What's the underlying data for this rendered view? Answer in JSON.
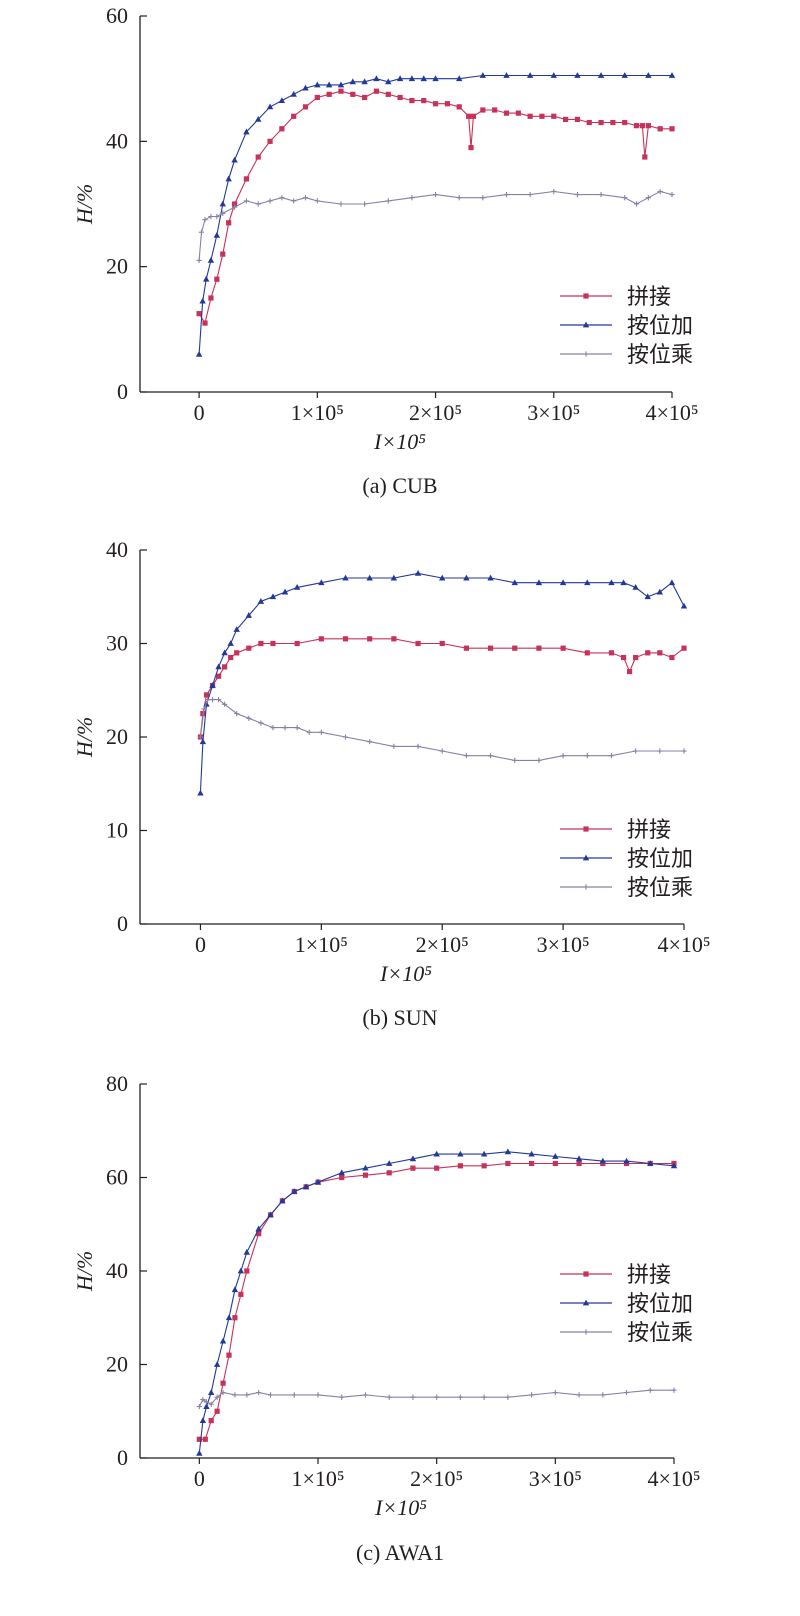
{
  "figure": {
    "background": "#ffffff",
    "axis_color": "#231f20"
  },
  "series_meta": [
    {
      "name": "拼接",
      "color": "#c8325a",
      "marker": "square"
    },
    {
      "name": "按位加",
      "color": "#23399a",
      "marker": "triangle"
    },
    {
      "name": "按位乘",
      "color": "#8a7fa6",
      "marker": "plus"
    }
  ],
  "chart_data": [
    {
      "type": "line",
      "caption": "(a) CUB",
      "xlabel": "I×10⁵",
      "ylabel": "H/%",
      "xlim": [
        -50000,
        400000
      ],
      "ylim": [
        0,
        60
      ],
      "y_ticks": [
        0,
        20,
        40,
        60
      ],
      "x_ticks": [
        0,
        100000,
        200000,
        300000,
        400000
      ],
      "x_tick_labels": [
        "0",
        "1×10⁵",
        "2×10⁵",
        "3×10⁵",
        "4×10⁵"
      ],
      "legend_position": "right",
      "series": [
        {
          "name": "拼接",
          "x": [
            0,
            5000,
            10000,
            15000,
            20000,
            25000,
            30000,
            40000,
            50000,
            60000,
            70000,
            80000,
            90000,
            100000,
            110000,
            120000,
            130000,
            140000,
            150000,
            160000,
            170000,
            180000,
            190000,
            200000,
            210000,
            220000,
            228000,
            230000,
            232000,
            240000,
            250000,
            260000,
            270000,
            280000,
            290000,
            300000,
            310000,
            320000,
            330000,
            340000,
            350000,
            360000,
            370000,
            375000,
            377000,
            380000,
            390000,
            400000
          ],
          "y": [
            12.5,
            11,
            15,
            18,
            22,
            27,
            30,
            34,
            37.5,
            40,
            42,
            44,
            45.5,
            47,
            47.5,
            48,
            47.5,
            47,
            48,
            47.5,
            47,
            46.5,
            46.5,
            46,
            46,
            45.5,
            44,
            39,
            44,
            45,
            45,
            44.5,
            44.5,
            44,
            44,
            44,
            43.5,
            43.5,
            43,
            43,
            43,
            43,
            42.5,
            42.5,
            37.5,
            42.5,
            42,
            42
          ]
        },
        {
          "name": "按位加",
          "x": [
            0,
            3000,
            6000,
            10000,
            15000,
            20000,
            25000,
            30000,
            40000,
            50000,
            60000,
            70000,
            80000,
            90000,
            100000,
            110000,
            120000,
            130000,
            140000,
            150000,
            160000,
            170000,
            180000,
            190000,
            200000,
            220000,
            240000,
            260000,
            280000,
            300000,
            320000,
            340000,
            360000,
            380000,
            400000
          ],
          "y": [
            6,
            14.5,
            18,
            21,
            25,
            30,
            34,
            37,
            41.5,
            43.5,
            45.5,
            46.5,
            47.5,
            48.5,
            49,
            49,
            49,
            49.5,
            49.5,
            50,
            49.5,
            50,
            50,
            50,
            50,
            50,
            50.5,
            50.5,
            50.5,
            50.5,
            50.5,
            50.5,
            50.5,
            50.5,
            50.5
          ]
        },
        {
          "name": "按位乘",
          "x": [
            0,
            2000,
            5000,
            10000,
            15000,
            20000,
            30000,
            40000,
            50000,
            60000,
            70000,
            80000,
            90000,
            100000,
            120000,
            140000,
            160000,
            180000,
            200000,
            220000,
            240000,
            260000,
            280000,
            300000,
            320000,
            340000,
            360000,
            370000,
            380000,
            390000,
            400000
          ],
          "y": [
            21,
            25.5,
            27.5,
            28,
            28,
            28.5,
            29.5,
            30.5,
            30,
            30.5,
            31,
            30.5,
            31,
            30.5,
            30,
            30,
            30.5,
            31,
            31.5,
            31,
            31,
            31.5,
            31.5,
            32,
            31.5,
            31.5,
            31,
            30,
            31,
            32,
            31.5
          ]
        }
      ]
    },
    {
      "type": "line",
      "caption": "(b) SUN",
      "xlabel": "I×10⁵",
      "ylabel": "H/%",
      "xlim": [
        -50000,
        400000
      ],
      "ylim": [
        0,
        40
      ],
      "y_ticks": [
        0,
        10,
        20,
        30,
        40
      ],
      "x_ticks": [
        0,
        100000,
        200000,
        300000,
        400000
      ],
      "x_tick_labels": [
        "0",
        "1×10⁵",
        "2×10⁵",
        "3×10⁵",
        "4×10⁵"
      ],
      "legend_position": "right",
      "series": [
        {
          "name": "拼接",
          "x": [
            0,
            2000,
            5000,
            10000,
            15000,
            20000,
            25000,
            30000,
            40000,
            50000,
            60000,
            80000,
            100000,
            120000,
            140000,
            160000,
            180000,
            200000,
            220000,
            240000,
            260000,
            280000,
            300000,
            320000,
            340000,
            350000,
            355000,
            360000,
            370000,
            380000,
            390000,
            400000
          ],
          "y": [
            20,
            22.5,
            24.5,
            25.5,
            26.5,
            27.5,
            28.5,
            29,
            29.5,
            30,
            30,
            30,
            30.5,
            30.5,
            30.5,
            30.5,
            30,
            30,
            29.5,
            29.5,
            29.5,
            29.5,
            29.5,
            29,
            29,
            28.5,
            27,
            28.5,
            29,
            29,
            28.5,
            29.5
          ]
        },
        {
          "name": "按位加",
          "x": [
            0,
            2000,
            5000,
            10000,
            15000,
            20000,
            25000,
            30000,
            40000,
            50000,
            60000,
            70000,
            80000,
            100000,
            120000,
            140000,
            160000,
            180000,
            200000,
            220000,
            240000,
            260000,
            280000,
            300000,
            320000,
            340000,
            350000,
            360000,
            370000,
            380000,
            390000,
            400000
          ],
          "y": [
            14,
            19.5,
            23.5,
            25.5,
            27.5,
            29,
            30,
            31.5,
            33,
            34.5,
            35,
            35.5,
            36,
            36.5,
            37,
            37,
            37,
            37.5,
            37,
            37,
            37,
            36.5,
            36.5,
            36.5,
            36.5,
            36.5,
            36.5,
            36,
            35,
            35.5,
            36.5,
            34
          ]
        },
        {
          "name": "按位乘",
          "x": [
            0,
            3000,
            6000,
            10000,
            15000,
            20000,
            30000,
            40000,
            50000,
            60000,
            70000,
            80000,
            90000,
            100000,
            120000,
            140000,
            160000,
            180000,
            200000,
            220000,
            240000,
            260000,
            280000,
            300000,
            320000,
            340000,
            360000,
            380000,
            400000
          ],
          "y": [
            20,
            23,
            24,
            24,
            24,
            23.5,
            22.5,
            22,
            21.5,
            21,
            21,
            21,
            20.5,
            20.5,
            20,
            19.5,
            19,
            19,
            18.5,
            18,
            18,
            17.5,
            17.5,
            18,
            18,
            18,
            18.5,
            18.5,
            18.5
          ]
        }
      ]
    },
    {
      "type": "line",
      "caption": "(c) AWA1",
      "xlabel": "I×10⁵",
      "ylabel": "H/%",
      "xlim": [
        -50000,
        400000
      ],
      "ylim": [
        0,
        80
      ],
      "y_ticks": [
        0,
        20,
        40,
        60,
        80
      ],
      "x_ticks": [
        0,
        100000,
        200000,
        300000,
        400000
      ],
      "x_tick_labels": [
        "0",
        "1×10⁵",
        "2×10⁵",
        "3×10⁵",
        "4×10⁵"
      ],
      "legend_position": "right",
      "series": [
        {
          "name": "拼接",
          "x": [
            0,
            5000,
            10000,
            15000,
            20000,
            25000,
            30000,
            35000,
            40000,
            50000,
            60000,
            70000,
            80000,
            90000,
            100000,
            120000,
            140000,
            160000,
            180000,
            200000,
            220000,
            240000,
            260000,
            280000,
            300000,
            320000,
            340000,
            360000,
            380000,
            400000
          ],
          "y": [
            4,
            4,
            8,
            10,
            16,
            22,
            30,
            35,
            40,
            48,
            52,
            55,
            57,
            58,
            59,
            60,
            60.5,
            61,
            62,
            62,
            62.5,
            62.5,
            63,
            63,
            63,
            63,
            63,
            63,
            63,
            63
          ]
        },
        {
          "name": "按位加",
          "x": [
            0,
            3000,
            6000,
            10000,
            15000,
            20000,
            25000,
            30000,
            35000,
            40000,
            50000,
            60000,
            70000,
            80000,
            90000,
            100000,
            120000,
            140000,
            160000,
            180000,
            200000,
            220000,
            240000,
            260000,
            280000,
            300000,
            320000,
            340000,
            360000,
            380000,
            400000
          ],
          "y": [
            1,
            8,
            11,
            14,
            20,
            25,
            30,
            36,
            40,
            44,
            49,
            52,
            55,
            57,
            58,
            59,
            61,
            62,
            63,
            64,
            65,
            65,
            65,
            65.5,
            65,
            64.5,
            64,
            63.5,
            63.5,
            63,
            62.5
          ]
        },
        {
          "name": "按位乘",
          "x": [
            0,
            3000,
            6000,
            10000,
            15000,
            20000,
            30000,
            40000,
            50000,
            60000,
            80000,
            100000,
            120000,
            140000,
            160000,
            180000,
            200000,
            220000,
            240000,
            260000,
            280000,
            300000,
            320000,
            340000,
            360000,
            380000,
            400000
          ],
          "y": [
            11,
            12.5,
            12,
            11.5,
            13,
            14,
            13.5,
            13.5,
            14,
            13.5,
            13.5,
            13.5,
            13,
            13.5,
            13,
            13,
            13,
            13,
            13,
            13,
            13.5,
            14,
            13.5,
            13.5,
            14,
            14.5,
            14.5
          ]
        }
      ]
    }
  ]
}
